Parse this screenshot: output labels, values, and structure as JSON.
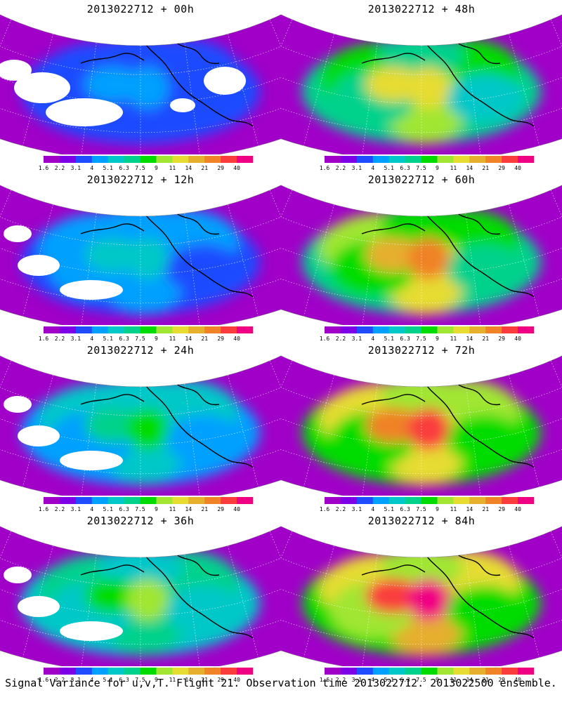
{
  "panels": [
    {
      "title": "2013022712 + 00h",
      "lead_hours": 0,
      "intensity": 0.22
    },
    {
      "title": "2013022712 + 48h",
      "lead_hours": 48,
      "intensity": 0.62
    },
    {
      "title": "2013022712 + 12h",
      "lead_hours": 12,
      "intensity": 0.32
    },
    {
      "title": "2013022712 + 60h",
      "lead_hours": 60,
      "intensity": 0.72
    },
    {
      "title": "2013022712 + 24h",
      "lead_hours": 24,
      "intensity": 0.42
    },
    {
      "title": "2013022712 + 72h",
      "lead_hours": 72,
      "intensity": 0.8
    },
    {
      "title": "2013022712 + 36h",
      "lead_hours": 36,
      "intensity": 0.5
    },
    {
      "title": "2013022712 + 84h",
      "lead_hours": 84,
      "intensity": 0.86
    }
  ],
  "colorbar": {
    "levels": [
      "1.6",
      "2.2",
      "3.1",
      "4",
      "5.1",
      "6.3",
      "7.5",
      "9",
      "11",
      "14",
      "21",
      "29",
      "40"
    ],
    "colors": [
      "#a000c8",
      "#7d00e6",
      "#1f4cff",
      "#00a0ff",
      "#00c8c8",
      "#00d28c",
      "#00dc00",
      "#a0e632",
      "#e6dc32",
      "#e6af2d",
      "#f08228",
      "#fa3c3c",
      "#f00082"
    ]
  },
  "caption": "Signal Variance for u,v,T. Flight 21. Observation time 2013022712. 2013022500 ensemble."
}
